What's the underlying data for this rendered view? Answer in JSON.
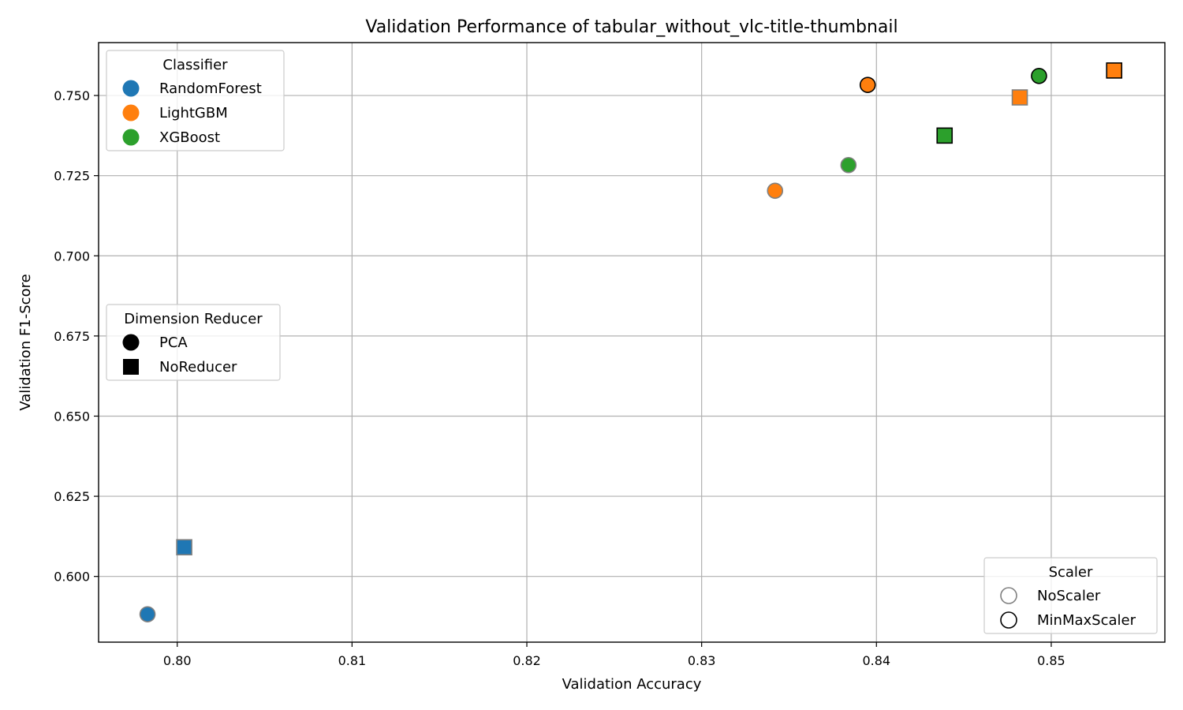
{
  "chart_data": {
    "type": "scatter",
    "title": "Validation Performance of tabular_without_vlc-title-thumbnail",
    "xlabel": "Validation Accuracy",
    "ylabel": "Validation F1-Score",
    "xlim": [
      0.7955,
      0.8565
    ],
    "ylim": [
      0.5795,
      0.7665
    ],
    "xticks": [
      0.8,
      0.81,
      0.82,
      0.83,
      0.84,
      0.85
    ],
    "xtick_labels": [
      "0.80",
      "0.81",
      "0.82",
      "0.83",
      "0.84",
      "0.85"
    ],
    "yticks": [
      0.6,
      0.625,
      0.65,
      0.675,
      0.7,
      0.725,
      0.75
    ],
    "ytick_labels": [
      "0.600",
      "0.625",
      "0.650",
      "0.675",
      "0.700",
      "0.725",
      "0.750"
    ],
    "grid": true,
    "classifier_colors": {
      "RandomForest": "#1f77b4",
      "LightGBM": "#ff7f0e",
      "XGBoost": "#2ca02c"
    },
    "scaler_edge_colors": {
      "NoScaler": "#808080",
      "MinMaxScaler": "#000000"
    },
    "reducer_markers": {
      "PCA": "circle",
      "NoReducer": "square"
    },
    "points": [
      {
        "classifier": "RandomForest",
        "reducer": "PCA",
        "scaler": "NoScaler",
        "x": 0.7983,
        "y": 0.5882
      },
      {
        "classifier": "RandomForest",
        "reducer": "NoReducer",
        "scaler": "NoScaler",
        "x": 0.8004,
        "y": 0.6091
      },
      {
        "classifier": "LightGBM",
        "reducer": "PCA",
        "scaler": "NoScaler",
        "x": 0.8342,
        "y": 0.7203
      },
      {
        "classifier": "LightGBM",
        "reducer": "PCA",
        "scaler": "MinMaxScaler",
        "x": 0.8395,
        "y": 0.7533
      },
      {
        "classifier": "LightGBM",
        "reducer": "NoReducer",
        "scaler": "NoScaler",
        "x": 0.8482,
        "y": 0.7494
      },
      {
        "classifier": "LightGBM",
        "reducer": "NoReducer",
        "scaler": "MinMaxScaler",
        "x": 0.8536,
        "y": 0.7578
      },
      {
        "classifier": "XGBoost",
        "reducer": "PCA",
        "scaler": "NoScaler",
        "x": 0.8384,
        "y": 0.7283
      },
      {
        "classifier": "XGBoost",
        "reducer": "PCA",
        "scaler": "MinMaxScaler",
        "x": 0.8493,
        "y": 0.7561
      },
      {
        "classifier": "XGBoost",
        "reducer": "NoReducer",
        "scaler": "MinMaxScaler",
        "x": 0.8439,
        "y": 0.7375
      }
    ],
    "legends": [
      {
        "title": "Classifier",
        "placement": "upper-left",
        "entries": [
          {
            "label": "RandomForest",
            "marker": "circle",
            "fill": "#1f77b4",
            "edge": "none"
          },
          {
            "label": "LightGBM",
            "marker": "circle",
            "fill": "#ff7f0e",
            "edge": "none"
          },
          {
            "label": "XGBoost",
            "marker": "circle",
            "fill": "#2ca02c",
            "edge": "none"
          }
        ]
      },
      {
        "title": "Dimension Reducer",
        "placement": "center-left",
        "entries": [
          {
            "label": "PCA",
            "marker": "circle",
            "fill": "#000000",
            "edge": "none"
          },
          {
            "label": "NoReducer",
            "marker": "square",
            "fill": "#000000",
            "edge": "none"
          }
        ]
      },
      {
        "title": "Scaler",
        "placement": "lower-right",
        "entries": [
          {
            "label": "NoScaler",
            "marker": "circle",
            "fill": "none",
            "edge": "#808080"
          },
          {
            "label": "MinMaxScaler",
            "marker": "circle",
            "fill": "none",
            "edge": "#000000"
          }
        ]
      }
    ]
  }
}
